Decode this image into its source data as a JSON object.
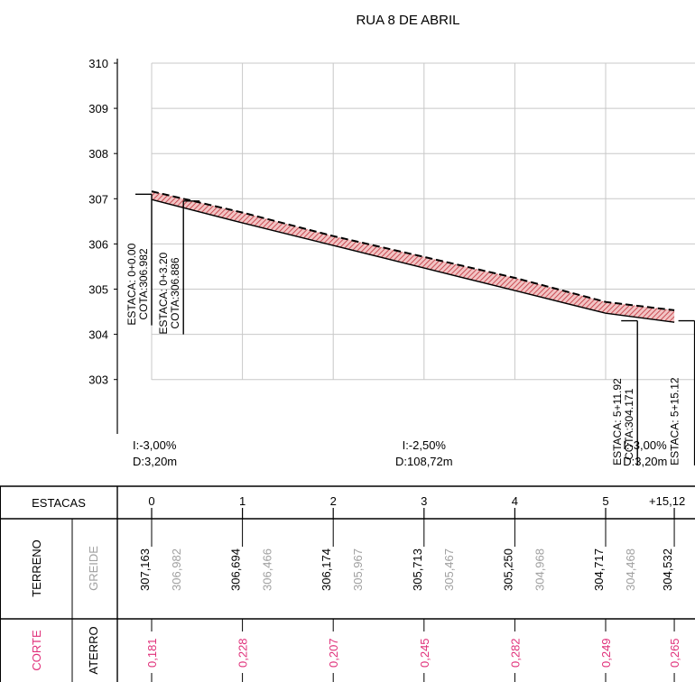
{
  "title": "RUA 8 DE ABRIL",
  "colors": {
    "grid": "#c8c8c8",
    "fill": "#e8a0a0",
    "hatch": "#c0303a",
    "terrain_line": "#000000",
    "greide_text": "#a0a0a0",
    "corte_text": "#e0307a",
    "black": "#000000"
  },
  "y_ticks": [
    "310",
    "309",
    "308",
    "307",
    "306",
    "305",
    "304",
    "303"
  ],
  "y_range": [
    302.0,
    310.0
  ],
  "chart_data": {
    "type": "line",
    "title": "RUA 8 DE ABRIL",
    "xlabel": "",
    "ylabel": "",
    "x_stations": [
      0,
      1,
      2,
      3,
      4,
      5,
      5.756
    ],
    "series": [
      {
        "name": "TERRENO",
        "x": [
          0,
          1,
          2,
          3,
          4,
          5,
          5.756
        ],
        "values": [
          307.163,
          306.694,
          306.174,
          305.713,
          305.25,
          304.717,
          304.532
        ]
      },
      {
        "name": "GREIDE",
        "x": [
          0,
          1,
          2,
          3,
          4,
          5,
          5.756
        ],
        "values": [
          306.982,
          306.466,
          305.967,
          305.467,
          304.968,
          304.468,
          304.267
        ]
      }
    ],
    "ylim": [
      302.0,
      310.0
    ]
  },
  "markers": [
    {
      "x_station": 0.0,
      "estaca": "ESTACA: 0+0.00",
      "cota": "COTA:306.982",
      "top": 307.1,
      "bottom": 304.2,
      "side": "left"
    },
    {
      "x_station": 0.35,
      "estaca": "ESTACA: 0+3.20",
      "cota": "COTA:306.886",
      "top": 306.95,
      "bottom": 304.0,
      "side": "right"
    },
    {
      "x_station": 5.35,
      "estaca": "ESTACA: 5+11.92",
      "cota": "COTA:304.171",
      "top": 304.3,
      "bottom": 301.1,
      "side": "left"
    },
    {
      "x_station": 5.98,
      "estaca": "ESTACA: 5+15.12",
      "cota": "",
      "top": 304.3,
      "bottom": 301.1,
      "side": "left"
    }
  ],
  "slopes": [
    {
      "x_station": 0.0,
      "line1": "I:-3,00%",
      "line2": "D:3,20m",
      "anchor": "start"
    },
    {
      "x_station": 3.0,
      "line1": "I:-2,50%",
      "line2": "D:108,72m",
      "anchor": "middle"
    },
    {
      "x_station": 5.4,
      "line1": "I:-3,00%",
      "line2": "D:3,20m",
      "anchor": "start"
    }
  ],
  "table": {
    "estacas_header": "ESTACAS",
    "terreno_header": "TERRENO",
    "greide_header": "GREIDE",
    "corte_header": "CORTE",
    "aterro_header": "ATERRO",
    "stations": [
      {
        "label": "0",
        "terreno": "307,163",
        "greide": "306,982",
        "corte": "0,181"
      },
      {
        "label": "1",
        "terreno": "306,694",
        "greide": "306,466",
        "corte": "0,228"
      },
      {
        "label": "2",
        "terreno": "306,174",
        "greide": "305,967",
        "corte": "0,207"
      },
      {
        "label": "3",
        "terreno": "305,713",
        "greide": "305,467",
        "corte": "0,245"
      },
      {
        "label": "4",
        "terreno": "305,250",
        "greide": "304,968",
        "corte": "0,282"
      },
      {
        "label": "5",
        "terreno": "304,717",
        "greide": "304,468",
        "corte": "0,249"
      },
      {
        "label": "+15,12",
        "terreno": "304,532",
        "greide": "304,267",
        "corte": "0,265"
      }
    ]
  }
}
